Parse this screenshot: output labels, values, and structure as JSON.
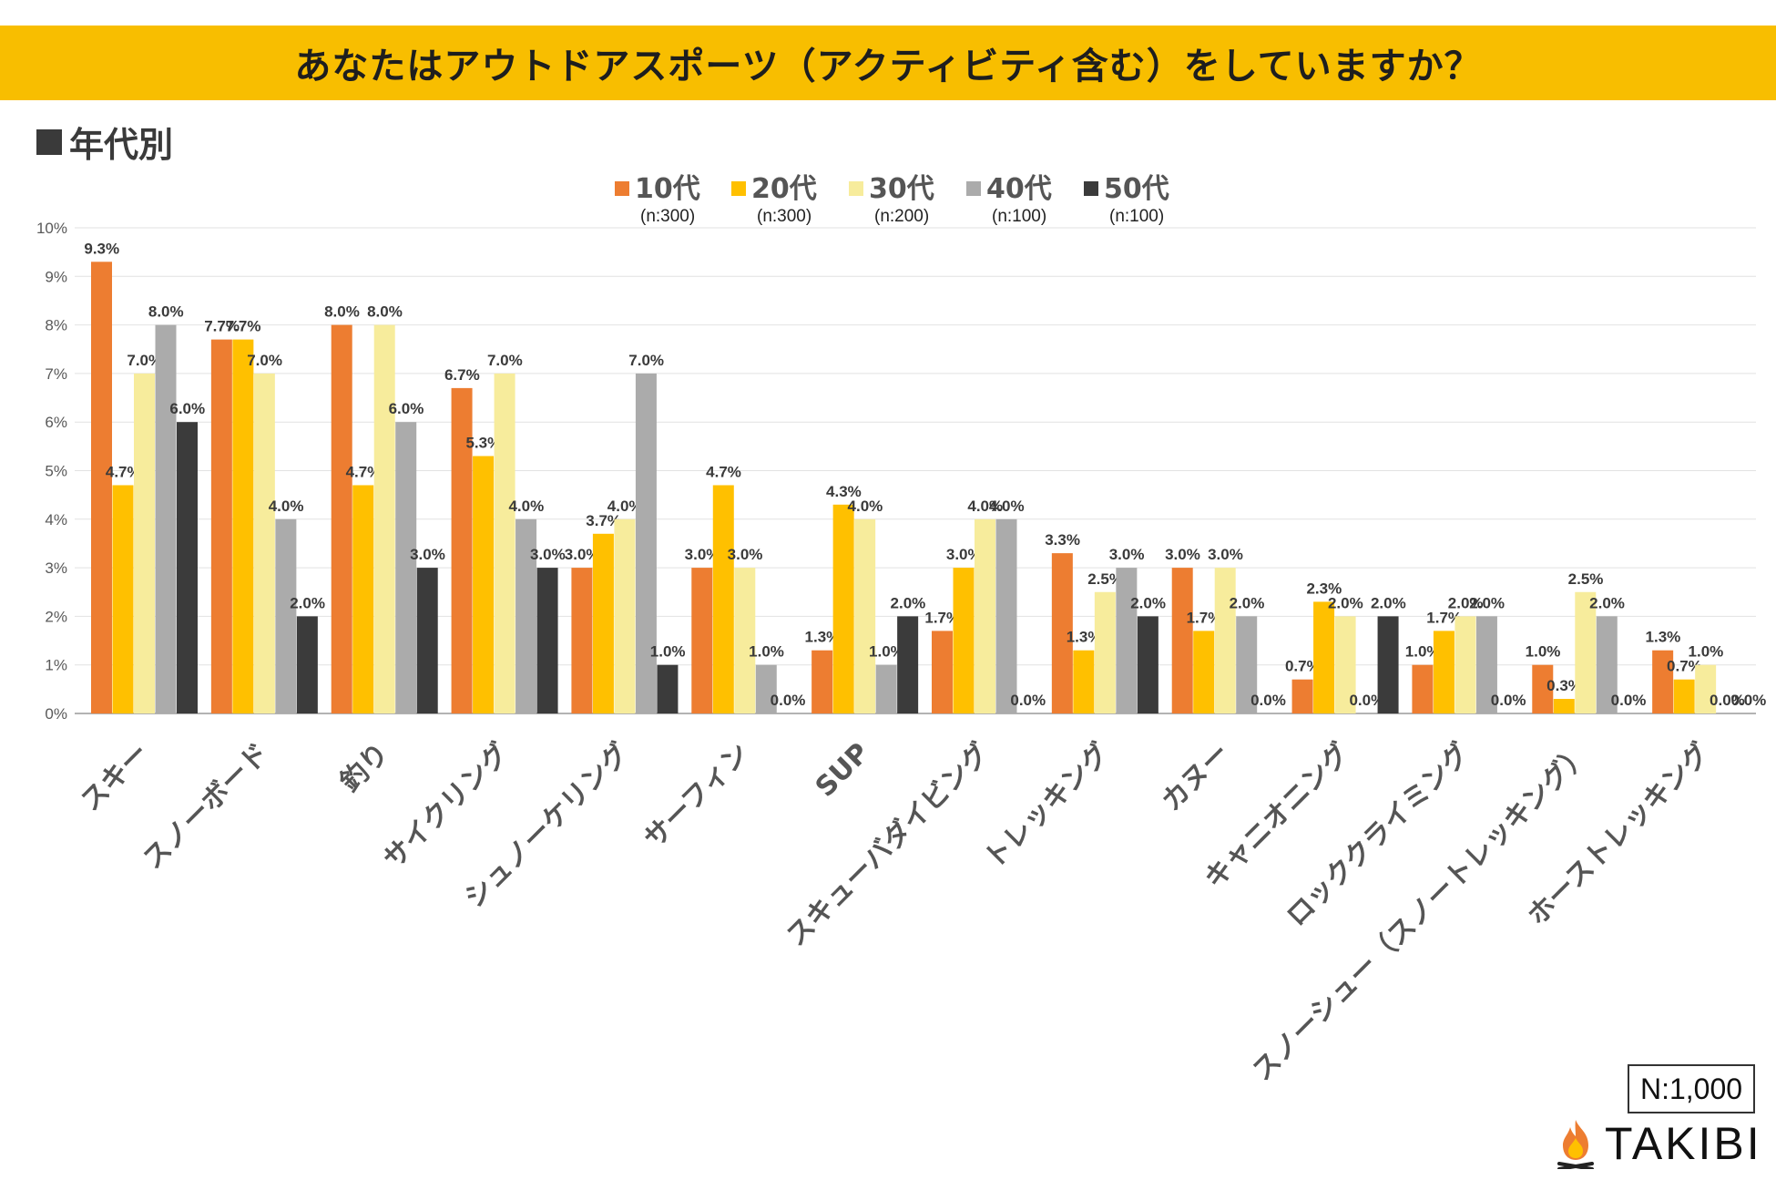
{
  "title": "あなたはアウトドアスポーツ（アクティビティ含む）をしていますか？",
  "subtitle": "年代別",
  "sample_size": "N:1,000",
  "brand": {
    "name": "TAKIBI",
    "icon": "campfire-icon"
  },
  "colors": {
    "banner": "#f8be00",
    "series": [
      "#ed7d31",
      "#ffc000",
      "#f7ec9c",
      "#ababab",
      "#3b3b3b"
    ]
  },
  "chart_data": {
    "type": "bar",
    "title": "あなたはアウトドアスポーツ（アクティビティ含む）をしていますか？",
    "xlabel": "",
    "ylabel": "",
    "ylim": [
      0,
      10
    ],
    "yticks": [
      "0%",
      "1%",
      "2%",
      "3%",
      "4%",
      "5%",
      "6%",
      "7%",
      "8%",
      "9%",
      "10%"
    ],
    "grid": true,
    "legend_position": "top-center",
    "categories": [
      "スキー",
      "スノーボード",
      "釣り",
      "サイクリング",
      "シュノーケリング",
      "サーフィン",
      "SUP",
      "スキューバダイビング",
      "トレッキング",
      "カヌー",
      "キャニオニング",
      "ロッククライミング",
      "スノーシュー（スノートレッキング）",
      "ホーストレッキング"
    ],
    "series": [
      {
        "name": "10代",
        "n": "(n:300)",
        "values": [
          9.3,
          7.7,
          8.0,
          6.7,
          3.0,
          3.0,
          1.3,
          1.7,
          3.3,
          3.0,
          0.7,
          1.0,
          1.0,
          1.3
        ]
      },
      {
        "name": "20代",
        "n": "(n:300)",
        "values": [
          4.7,
          7.7,
          4.7,
          5.3,
          3.7,
          4.7,
          4.3,
          3.0,
          1.3,
          1.7,
          2.3,
          1.7,
          0.3,
          0.7
        ]
      },
      {
        "name": "30代",
        "n": "(n:200)",
        "values": [
          7.0,
          7.0,
          8.0,
          7.0,
          4.0,
          3.0,
          4.0,
          4.0,
          2.5,
          3.0,
          2.0,
          2.0,
          2.5,
          1.0
        ]
      },
      {
        "name": "40代",
        "n": "(n:100)",
        "values": [
          8.0,
          4.0,
          6.0,
          4.0,
          7.0,
          1.0,
          1.0,
          4.0,
          3.0,
          2.0,
          0.0,
          2.0,
          2.0,
          0.0
        ]
      },
      {
        "name": "50代",
        "n": "(n:100)",
        "values": [
          6.0,
          2.0,
          3.0,
          3.0,
          1.0,
          0.0,
          2.0,
          0.0,
          2.0,
          0.0,
          2.0,
          0.0,
          0.0,
          0.0
        ]
      }
    ],
    "value_labels": [
      [
        "9.3%",
        "7.7%",
        "8.0%",
        "6.7%",
        "3.0%",
        "3.0%",
        "1.3%",
        "1.7%",
        "3.3%",
        "3.0%",
        "0.7%",
        "1.0%",
        "1.0%",
        "1.3%"
      ],
      [
        "4.7%",
        "7.7%",
        "4.7%",
        "5.3%",
        "3.7%",
        "4.7%",
        "4.3%",
        "3.0%",
        "1.3%",
        "1.7%",
        "2.3%",
        "1.7%",
        "0.3%",
        "0.7%"
      ],
      [
        "7.0%",
        "7.0%",
        "8.0%",
        "7.0%",
        "4.0%",
        "3.0%",
        "4.0%",
        "4.0%",
        "2.5%",
        "3.0%",
        "2.0%",
        "2.0%",
        "2.5%",
        "1.0%"
      ],
      [
        "8.0%",
        "4.0%",
        "6.0%",
        "4.0%",
        "7.0%",
        "1.0%",
        "1.0%",
        "4.0%",
        "3.0%",
        "2.0%",
        "0.0%",
        "2.0%",
        "2.0%",
        "0.0%"
      ],
      [
        "6.0%",
        "2.0%",
        "3.0%",
        "3.0%",
        "1.0%",
        "0.0%",
        "2.0%",
        "0.0%",
        "2.0%",
        "0.0%",
        "2.0%",
        "0.0%",
        "0.0%",
        "0.0%"
      ]
    ]
  }
}
